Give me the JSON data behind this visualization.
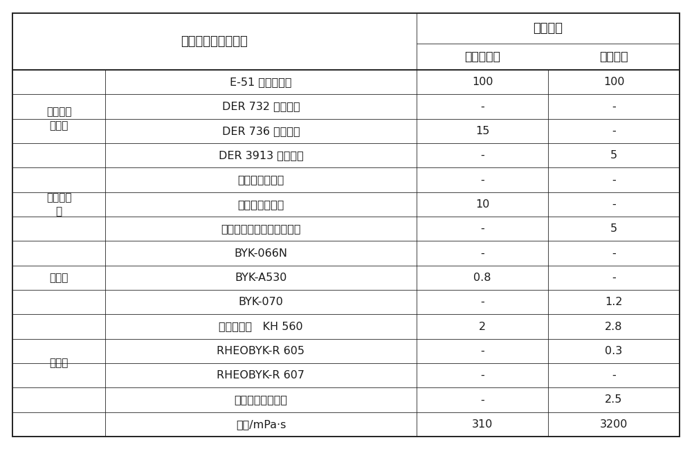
{
  "title_col1": "组分（以重量份计）",
  "title_group": "实施例二",
  "col_headers": [
    "层间处理剂",
    "环氧中涂"
  ],
  "categories": [
    {
      "text": "柔韧型环\n氧树脂",
      "start": 0,
      "end": 3
    },
    {
      "text": "活性稀释\n剂",
      "start": 4,
      "end": 6
    },
    {
      "text": "消泡剂",
      "start": 7,
      "end": 9
    },
    {
      "text": "止流剂",
      "start": 11,
      "end": 12
    }
  ],
  "rows": [
    {
      "component": "E-51 型环氧树脂",
      "col1": "100",
      "col2": "100"
    },
    {
      "component": "DER 732 环氧树脂",
      "col1": "-",
      "col2": "-"
    },
    {
      "component": "DER 736 环氧树脂",
      "col1": "15",
      "col2": "-"
    },
    {
      "component": "DER 3913 环氧树脂",
      "col1": "-",
      "col2": "5"
    },
    {
      "component": "丁基缩水甘油醚",
      "col1": "-",
      "col2": "-"
    },
    {
      "component": "苄基缩水甘油醚",
      "col1": "10",
      "col2": "-"
    },
    {
      "component": "十二至十四烷基缩水甘油醚",
      "col1": "-",
      "col2": "5"
    },
    {
      "component": "BYK-066N",
      "col1": "-",
      "col2": "-"
    },
    {
      "component": "BYK-A530",
      "col1": "0.8",
      "col2": "-"
    },
    {
      "component": "BYK-070",
      "col1": "-",
      "col2": "1.2"
    },
    {
      "component": "硅烷偶联剂   KH 560",
      "col1": "2",
      "col2": "2.8"
    },
    {
      "component": "RHEOBYK-R 605",
      "col1": "-",
      "col2": "0.3"
    },
    {
      "component": "RHEOBYK-R 607",
      "col1": "-",
      "col2": "-"
    },
    {
      "component": "亲水气相二氧化硅",
      "col1": "-",
      "col2": "2.5"
    },
    {
      "component": "粘度/mPa·s",
      "col1": "310",
      "col2": "3200"
    }
  ],
  "bg_color": "#ffffff",
  "text_color": "#1a1a1a",
  "line_color": "#222222",
  "font_size_header": 13,
  "font_size_body": 11.5,
  "font_size_cat": 11
}
